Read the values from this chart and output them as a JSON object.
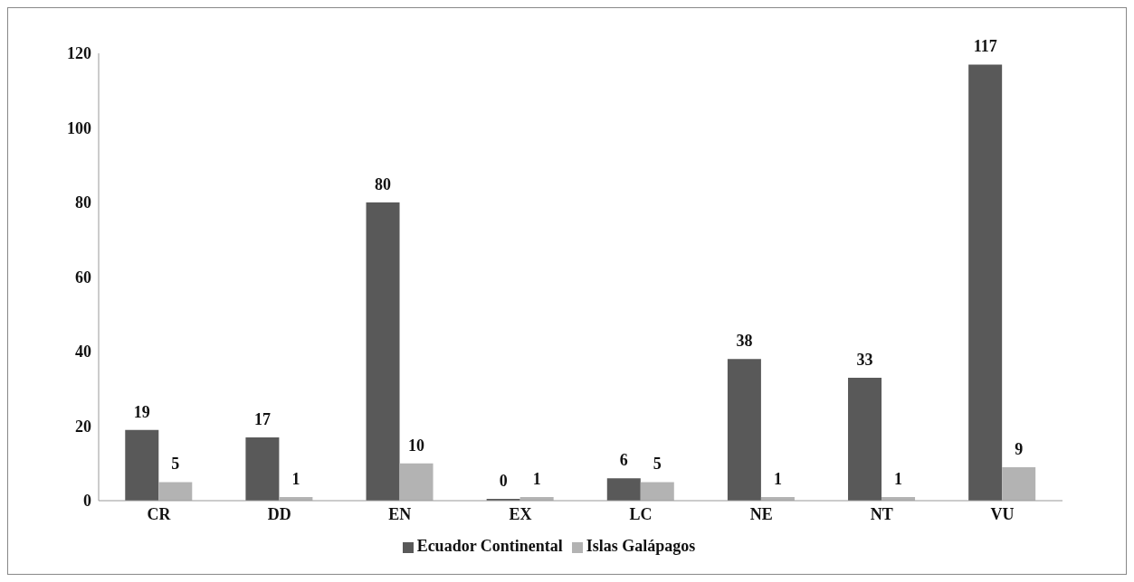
{
  "chart_data": {
    "type": "bar",
    "categories": [
      "CR",
      "DD",
      "EN",
      "EX",
      "LC",
      "NE",
      "NT",
      "VU"
    ],
    "series": [
      {
        "name": "Ecuador Continental",
        "color": "#595959",
        "values": [
          19,
          17,
          80,
          0,
          6,
          38,
          33,
          117
        ]
      },
      {
        "name": "Islas Galápagos",
        "color": "#b3b3b3",
        "values": [
          5,
          1,
          10,
          1,
          5,
          1,
          1,
          9
        ]
      }
    ],
    "ylim": [
      0,
      120
    ],
    "yticks": [
      0,
      20,
      40,
      60,
      80,
      100,
      120
    ],
    "grid": false,
    "legend": "bottom",
    "data_labels": true
  }
}
